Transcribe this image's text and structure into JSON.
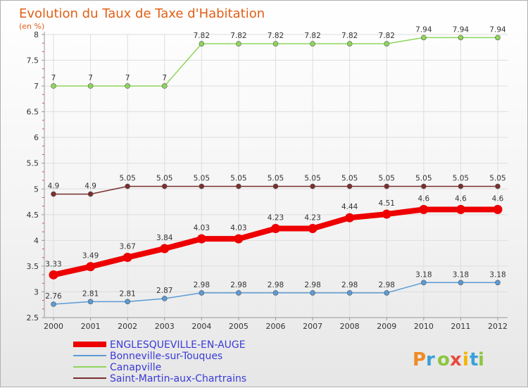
{
  "chart_data": {
    "type": "line",
    "title": "Evolution du Taux de Taxe d'Habitation",
    "ylabel": "(en %)",
    "xlabel": "",
    "ylim": [
      2.5,
      8
    ],
    "yticks": [
      "2.5",
      "3",
      "3.5",
      "4",
      "4.5",
      "5",
      "5.5",
      "6",
      "6.5",
      "7",
      "7.5",
      "8"
    ],
    "x": [
      "2000",
      "2001",
      "2002",
      "2003",
      "2004",
      "2005",
      "2006",
      "2007",
      "2008",
      "2009",
      "2010",
      "2011",
      "2012"
    ],
    "grid": true,
    "series": [
      {
        "name": "ENGLESQUEVILLE-EN-AUGE",
        "color": "#ee0000",
        "values": [
          3.33,
          3.49,
          3.67,
          3.84,
          4.03,
          4.03,
          4.23,
          4.23,
          4.44,
          4.51,
          4.6,
          4.6,
          4.6
        ],
        "labels": [
          "3.33",
          "3.49",
          "3.67",
          "3.84",
          "4.03",
          "4.03",
          "4.23",
          "4.23",
          "4.44",
          "4.51",
          "4.6",
          "4.6",
          "4.6"
        ]
      },
      {
        "name": "Bonneville-sur-Touques",
        "color": "#5b9bd5",
        "values": [
          2.76,
          2.81,
          2.81,
          2.87,
          2.98,
          2.98,
          2.98,
          2.98,
          2.98,
          2.98,
          3.18,
          3.18,
          3.18
        ],
        "labels": [
          "2.76",
          "2.81",
          "2.81",
          "2.87",
          "2.98",
          "2.98",
          "2.98",
          "2.98",
          "2.98",
          "2.98",
          "3.18",
          "3.18",
          "3.18"
        ]
      },
      {
        "name": "Canapville",
        "color": "#8ed65a",
        "values": [
          7,
          7,
          7,
          7,
          7.82,
          7.82,
          7.82,
          7.82,
          7.82,
          7.82,
          7.94,
          7.94,
          7.94
        ],
        "labels": [
          "7",
          "7",
          "7",
          "7",
          "7.82",
          "7.82",
          "7.82",
          "7.82",
          "7.82",
          "7.82",
          "7.94",
          "7.94",
          "7.94"
        ]
      },
      {
        "name": "Saint-Martin-aux-Chartrains",
        "color": "#7a2f2f",
        "values": [
          4.9,
          4.9,
          5.05,
          5.05,
          5.05,
          5.05,
          5.05,
          5.05,
          5.05,
          5.05,
          5.05,
          5.05,
          5.05
        ],
        "labels": [
          "4.9",
          "4.9",
          "5.05",
          "5.05",
          "5.05",
          "5.05",
          "5.05",
          "5.05",
          "5.05",
          "5.05",
          "5.05",
          "5.05",
          "5.05"
        ]
      }
    ],
    "legend": [
      "ENGLESQUEVILLE-EN-AUGE",
      "Bonneville-sur-Touques",
      "Canapville",
      "Saint-Martin-aux-Chartrains"
    ]
  },
  "logo": {
    "letters": [
      "P",
      "r",
      "o",
      "x",
      "i",
      "t",
      "i"
    ],
    "colors": [
      "#f08a24",
      "#3aa0d8",
      "#8cc63f",
      "#e84c3d",
      "#f5b400",
      "#3aa0d8",
      "#8cc63f"
    ]
  }
}
